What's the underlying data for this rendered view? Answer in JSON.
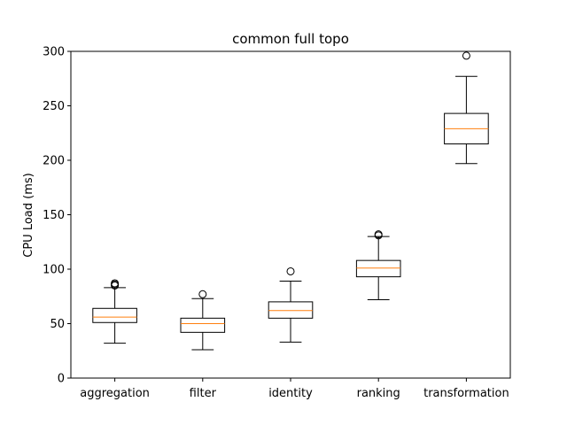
{
  "chart_data": {
    "type": "boxplot",
    "title": "common full topo",
    "xlabel": "",
    "ylabel": "CPU Load (ms)",
    "ylim": [
      0,
      300
    ],
    "yticks": [
      0,
      50,
      100,
      150,
      200,
      250,
      300
    ],
    "grid": false,
    "colors": {
      "box": "#000000",
      "median": "#ff7f0e",
      "outlier": "#000000"
    },
    "categories": [
      "aggregation",
      "filter",
      "identity",
      "ranking",
      "transformation"
    ],
    "boxes": [
      {
        "label": "aggregation",
        "whisker_low": 32,
        "q1": 51,
        "median": 56,
        "q3": 64,
        "whisker_high": 83,
        "outliers": [
          85,
          86,
          87
        ]
      },
      {
        "label": "filter",
        "whisker_low": 26,
        "q1": 42,
        "median": 50,
        "q3": 55,
        "whisker_high": 73,
        "outliers": [
          77
        ]
      },
      {
        "label": "identity",
        "whisker_low": 33,
        "q1": 55,
        "median": 62,
        "q3": 70,
        "whisker_high": 89,
        "outliers": [
          98
        ]
      },
      {
        "label": "ranking",
        "whisker_low": 72,
        "q1": 93,
        "median": 101,
        "q3": 108,
        "whisker_high": 130,
        "outliers": [
          131,
          132
        ]
      },
      {
        "label": "transformation",
        "whisker_low": 197,
        "q1": 215,
        "median": 229,
        "q3": 243,
        "whisker_high": 277,
        "outliers": [
          296
        ]
      }
    ]
  }
}
